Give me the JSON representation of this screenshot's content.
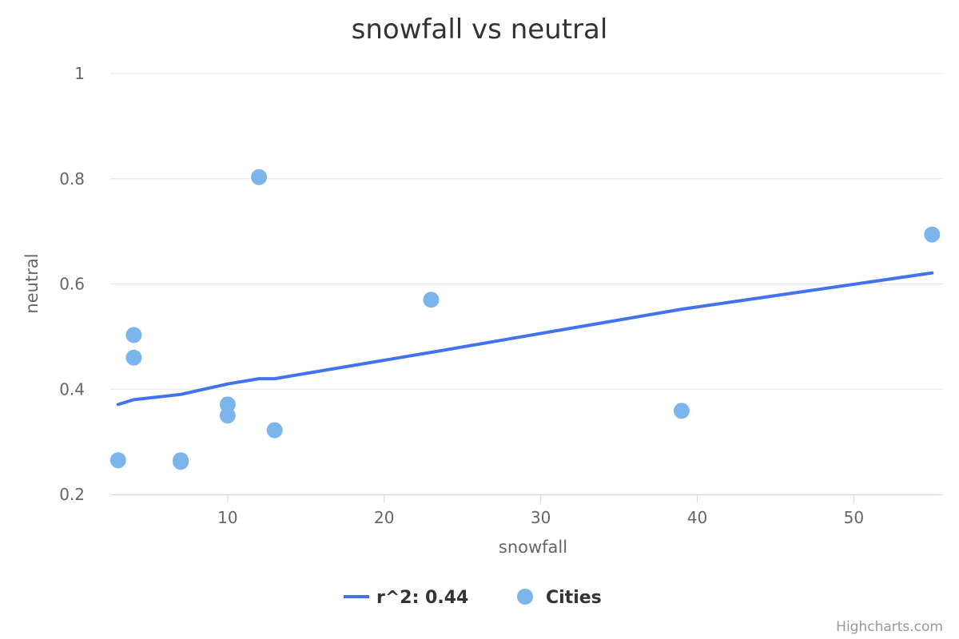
{
  "colors": {
    "background": "#ffffff",
    "gridline": "#e6e6e6",
    "axis_line": "#ccd6eb",
    "regression_line": "#4272f0",
    "points": "#7cb5ec",
    "title": "#333333",
    "tick_label": "#666666",
    "credits": "#999999"
  },
  "credits": "Highcharts.com",
  "chart_data": {
    "type": "scatter",
    "title": "snowfall vs neutral",
    "xlabel": "snowfall",
    "ylabel": "neutral",
    "xlim": [
      2.5,
      55.7
    ],
    "ylim": [
      0.2,
      1.0
    ],
    "x_ticks": [
      10,
      20,
      30,
      40,
      50
    ],
    "y_ticks": [
      0.2,
      0.4,
      0.6,
      0.8,
      1
    ],
    "grid": true,
    "legend_position": "bottom-center",
    "series": [
      {
        "name": "r^2: 0.44",
        "type": "line",
        "points": [
          [
            3,
            0.371
          ],
          [
            4,
            0.38
          ],
          [
            7,
            0.39
          ],
          [
            10,
            0.41
          ],
          [
            12,
            0.42
          ],
          [
            13,
            0.42
          ],
          [
            23,
            0.47
          ],
          [
            39,
            0.552
          ],
          [
            55,
            0.621
          ]
        ]
      },
      {
        "name": "Cities",
        "type": "scatter",
        "points": [
          [
            3,
            0.265
          ],
          [
            4,
            0.503
          ],
          [
            4,
            0.46
          ],
          [
            7,
            0.265
          ],
          [
            7,
            0.262
          ],
          [
            10,
            0.371
          ],
          [
            10,
            0.35
          ],
          [
            12,
            0.803
          ],
          [
            13,
            0.322
          ],
          [
            23,
            0.57
          ],
          [
            39,
            0.359
          ],
          [
            55,
            0.694
          ]
        ]
      }
    ]
  }
}
